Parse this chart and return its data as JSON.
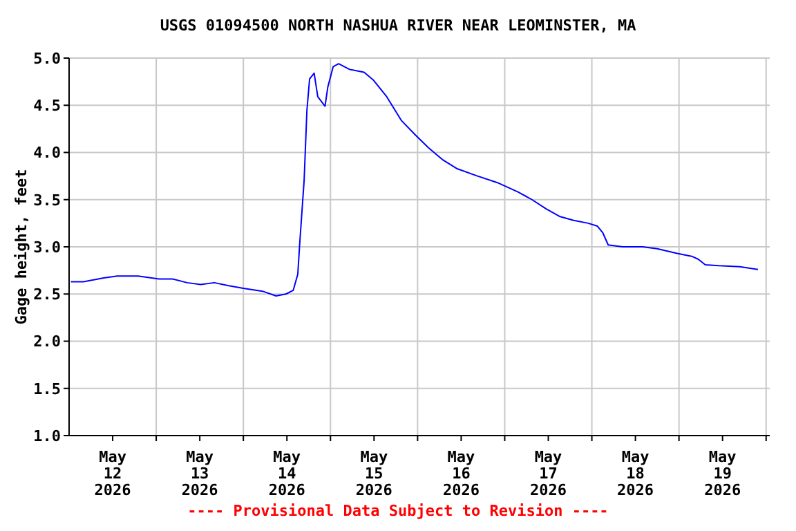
{
  "chart_data": {
    "type": "line",
    "title": "USGS 01094500 NORTH NASHUA RIVER NEAR LEOMINSTER, MA",
    "ylabel": "Gage height, feet",
    "annotations": [
      "---- Provisional Data Subject to Revision ----"
    ],
    "x": [
      "2026-05-12T00:30",
      "2026-05-12T04:00",
      "2026-05-12T09:30",
      "2026-05-12T13:15",
      "2026-05-12T19:00",
      "2026-05-13T00:45",
      "2026-05-13T04:30",
      "2026-05-13T08:30",
      "2026-05-13T12:15",
      "2026-05-13T16:00",
      "2026-05-13T19:45",
      "2026-05-14T00:00",
      "2026-05-14T05:15",
      "2026-05-14T09:00",
      "2026-05-14T11:45",
      "2026-05-14T13:45",
      "2026-05-14T15:00",
      "2026-05-14T15:30",
      "2026-05-14T16:45",
      "2026-05-14T17:30",
      "2026-05-14T18:15",
      "2026-05-14T19:30",
      "2026-05-14T20:30",
      "2026-05-14T22:30",
      "2026-05-14T23:15",
      "2026-05-15T00:45",
      "2026-05-15T02:15",
      "2026-05-15T05:15",
      "2026-05-15T09:15",
      "2026-05-15T11:45",
      "2026-05-15T15:30",
      "2026-05-15T19:30",
      "2026-05-15T23:15",
      "2026-05-16T03:00",
      "2026-05-16T07:00",
      "2026-05-16T10:45",
      "2026-05-16T16:30",
      "2026-05-16T22:00",
      "2026-05-17T03:45",
      "2026-05-17T07:30",
      "2026-05-17T11:30",
      "2026-05-17T15:15",
      "2026-05-17T19:00",
      "2026-05-17T23:00",
      "2026-05-18T01:30",
      "2026-05-18T03:00",
      "2026-05-18T04:30",
      "2026-05-18T08:30",
      "2026-05-18T14:00",
      "2026-05-18T18:00",
      "2026-05-18T23:30",
      "2026-05-19T03:30",
      "2026-05-19T05:15",
      "2026-05-19T07:15",
      "2026-05-19T11:00",
      "2026-05-19T16:45",
      "2026-05-19T21:45"
    ],
    "series": [
      {
        "color": "#0000ff",
        "values": [
          2.63,
          2.63,
          2.67,
          2.69,
          2.69,
          2.66,
          2.66,
          2.62,
          2.6,
          2.62,
          2.59,
          2.56,
          2.53,
          2.48,
          2.5,
          2.54,
          2.71,
          3.02,
          3.71,
          4.44,
          4.78,
          4.84,
          4.59,
          4.49,
          4.69,
          4.91,
          4.94,
          4.88,
          4.85,
          4.77,
          4.59,
          4.34,
          4.19,
          4.05,
          3.92,
          3.83,
          3.75,
          3.68,
          3.58,
          3.5,
          3.4,
          3.32,
          3.28,
          3.25,
          3.22,
          3.15,
          3.02,
          3.0,
          3.0,
          2.98,
          2.93,
          2.9,
          2.87,
          2.81,
          2.8,
          2.79,
          2.76
        ]
      }
    ],
    "xlim": [
      "2026-05-12T00:00",
      "2026-05-20T01:00"
    ],
    "xticks": [
      {
        "value": "2026-05-12T12:00",
        "label": "May\n12\n2026"
      },
      {
        "value": "2026-05-13T00:00",
        "label": null
      },
      {
        "value": "2026-05-13T12:00",
        "label": "May\n13\n2026"
      },
      {
        "value": "2026-05-14T00:00",
        "label": null
      },
      {
        "value": "2026-05-14T12:00",
        "label": "May\n14\n2026"
      },
      {
        "value": "2026-05-15T00:00",
        "label": null
      },
      {
        "value": "2026-05-15T12:00",
        "label": "May\n15\n2026"
      },
      {
        "value": "2026-05-16T00:00",
        "label": null
      },
      {
        "value": "2026-05-16T12:00",
        "label": "May\n16\n2026"
      },
      {
        "value": "2026-05-17T00:00",
        "label": null
      },
      {
        "value": "2026-05-17T12:00",
        "label": "May\n17\n2026"
      },
      {
        "value": "2026-05-18T00:00",
        "label": null
      },
      {
        "value": "2026-05-18T12:00",
        "label": "May\n18\n2026"
      },
      {
        "value": "2026-05-19T00:00",
        "label": null
      },
      {
        "value": "2026-05-19T12:00",
        "label": "May\n19\n2026"
      },
      {
        "value": "2026-05-20T00:00",
        "label": null
      }
    ],
    "ylim": [
      1.0,
      5.0
    ],
    "yticks": [
      {
        "value": 1.0,
        "label": "1.0"
      },
      {
        "value": 1.5,
        "label": "1.5"
      },
      {
        "value": 2.0,
        "label": "2.0"
      },
      {
        "value": 2.5,
        "label": "2.5"
      },
      {
        "value": 3.0,
        "label": "3.0"
      },
      {
        "value": 3.5,
        "label": "3.5"
      },
      {
        "value": 4.0,
        "label": "4.0"
      },
      {
        "value": 4.5,
        "label": "4.5"
      },
      {
        "value": 5.0,
        "label": "5.0"
      }
    ],
    "grid": true,
    "legend": false,
    "marker": "none",
    "line_style": "solid"
  }
}
